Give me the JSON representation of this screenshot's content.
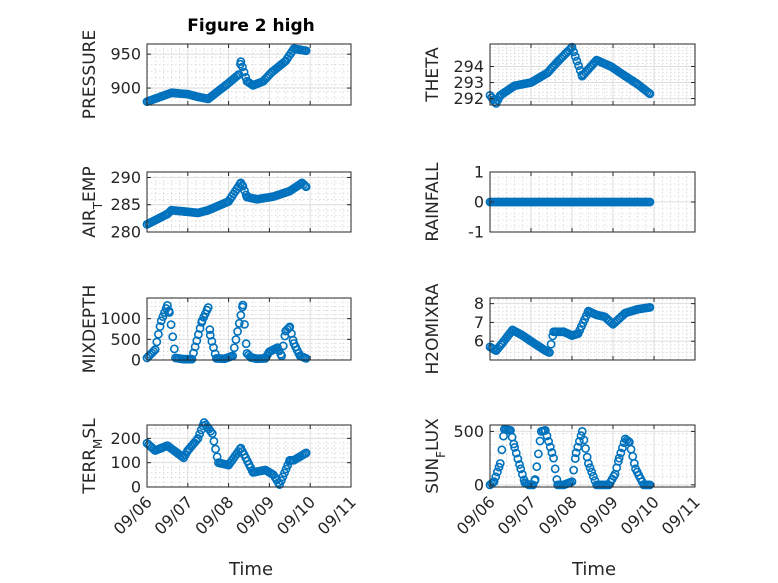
{
  "figure_title": "Figure 2 high",
  "x_axis": {
    "label": "Time",
    "tick_labels": [
      "09/06",
      "09/07",
      "09/08",
      "09/09",
      "09/10",
      "09/11"
    ],
    "range_days": [
      6,
      11
    ]
  },
  "marker_color": "#0072BD",
  "grid": true,
  "chart_data": [
    {
      "type": "scatter",
      "name": "pressure",
      "ylabel": "PRESSURE",
      "ylim": [
        875,
        965
      ],
      "yticks": [
        900,
        950
      ],
      "ytick_labels": [
        "900",
        "950"
      ],
      "x": [
        6.0,
        6.6,
        7.0,
        7.25,
        7.5,
        7.95,
        8.25,
        8.3,
        8.45,
        8.6,
        8.85,
        9.05,
        9.4,
        9.6,
        9.9
      ],
      "y": [
        880,
        893,
        891,
        887,
        884,
        905,
        920,
        939,
        910,
        904,
        910,
        923,
        940,
        958,
        955
      ]
    },
    {
      "type": "scatter",
      "name": "theta",
      "ylabel": "THETA",
      "ylim": [
        291.6,
        295.4
      ],
      "yticks": [
        292,
        293,
        294
      ],
      "ytick_labels": [
        "292",
        "293",
        "294"
      ],
      "x": [
        6.0,
        6.15,
        6.25,
        6.6,
        7.0,
        7.4,
        7.65,
        8.0,
        8.25,
        8.6,
        8.95,
        9.3,
        9.6,
        9.9
      ],
      "y": [
        292.2,
        291.7,
        292.2,
        292.8,
        293.0,
        293.6,
        294.3,
        295.2,
        293.4,
        294.4,
        294.0,
        293.4,
        292.9,
        292.3
      ]
    },
    {
      "type": "scatter",
      "name": "rainfall",
      "ylabel": "RAINFALL",
      "ylim": [
        -1,
        1
      ],
      "yticks": [
        -1,
        0,
        1
      ],
      "ytick_labels": [
        "-1",
        "0",
        "1"
      ],
      "x": [
        6.0,
        9.9
      ],
      "y": [
        0,
        0
      ]
    },
    {
      "type": "scatter",
      "name": "air_temp",
      "ylabel": "AIR_TEMP",
      "ylim": [
        280,
        291
      ],
      "yticks": [
        280,
        285,
        290
      ],
      "ytick_labels": [
        "280",
        "285",
        "290"
      ],
      "x": [
        6.0,
        6.5,
        6.6,
        7.0,
        7.25,
        7.5,
        8.0,
        8.3,
        8.35,
        8.45,
        8.7,
        9.1,
        9.5,
        9.8,
        9.9
      ],
      "y": [
        281.4,
        283.3,
        284.0,
        283.7,
        283.5,
        284.0,
        285.6,
        289.0,
        288.4,
        286.4,
        286.0,
        286.5,
        287.5,
        289.0,
        288.3
      ]
    },
    {
      "type": "scatter",
      "name": "mixdepth",
      "ylabel": "MIXDEPTH",
      "ylim": [
        0,
        1500
      ],
      "yticks": [
        0,
        500,
        1000
      ],
      "ytick_labels": [
        "0",
        "500",
        "1000"
      ],
      "x": [
        6.0,
        6.2,
        6.35,
        6.5,
        6.55,
        6.7,
        6.9,
        7.1,
        7.35,
        7.5,
        7.55,
        7.7,
        7.9,
        8.1,
        8.35,
        8.45,
        8.55,
        8.7,
        8.9,
        9.0,
        9.2,
        9.3,
        9.4,
        9.5,
        9.6,
        9.75,
        9.9
      ],
      "y": [
        50,
        250,
        950,
        1320,
        1150,
        50,
        20,
        20,
        950,
        1270,
        600,
        40,
        30,
        100,
        1330,
        160,
        60,
        30,
        40,
        200,
        300,
        100,
        700,
        800,
        400,
        100,
        40
      ]
    },
    {
      "type": "scatter",
      "name": "h2omixra",
      "ylabel": "H2OMIXRA",
      "ylim": [
        5,
        8.3
      ],
      "yticks": [
        6,
        7,
        8
      ],
      "ytick_labels": [
        "6",
        "7",
        "8"
      ],
      "x": [
        6.0,
        6.15,
        6.3,
        6.55,
        6.8,
        7.0,
        7.35,
        7.45,
        7.55,
        7.8,
        8.0,
        8.15,
        8.4,
        8.6,
        8.8,
        9.0,
        9.3,
        9.6,
        9.9
      ],
      "y": [
        5.7,
        5.5,
        5.9,
        6.6,
        6.3,
        6.0,
        5.5,
        5.4,
        6.5,
        6.5,
        6.3,
        6.4,
        7.6,
        7.4,
        7.3,
        6.9,
        7.5,
        7.7,
        7.8
      ]
    },
    {
      "type": "scatter",
      "name": "terr_msl",
      "ylabel": "TERR_MSL",
      "ylim": [
        0,
        255
      ],
      "yticks": [
        0,
        100,
        200
      ],
      "ytick_labels": [
        "0",
        "100",
        "200"
      ],
      "x": [
        6.0,
        6.2,
        6.5,
        6.9,
        7.0,
        7.25,
        7.4,
        7.6,
        7.75,
        8.0,
        8.3,
        8.6,
        8.9,
        9.1,
        9.25,
        9.5,
        9.6,
        9.9
      ],
      "y": [
        180,
        150,
        170,
        120,
        150,
        200,
        265,
        220,
        100,
        90,
        160,
        60,
        70,
        50,
        10,
        110,
        110,
        140
      ]
    },
    {
      "type": "scatter",
      "name": "sun_flux",
      "ylabel": "SUN_FLUX",
      "ylim": [
        -20,
        560
      ],
      "yticks": [
        0,
        500
      ],
      "ytick_labels": [
        "0",
        "500"
      ],
      "x": [
        6.0,
        6.1,
        6.25,
        6.35,
        6.5,
        6.6,
        6.75,
        6.85,
        6.95,
        7.05,
        7.1,
        7.25,
        7.35,
        7.55,
        7.65,
        7.8,
        8.0,
        8.1,
        8.25,
        8.4,
        8.6,
        8.75,
        8.9,
        9.05,
        9.15,
        9.3,
        9.4,
        9.55,
        9.75,
        9.9
      ],
      "y": [
        0,
        30,
        200,
        520,
        510,
        350,
        150,
        20,
        0,
        0,
        50,
        500,
        510,
        250,
        0,
        0,
        30,
        300,
        500,
        200,
        0,
        0,
        0,
        100,
        250,
        430,
        400,
        150,
        0,
        0
      ]
    }
  ]
}
